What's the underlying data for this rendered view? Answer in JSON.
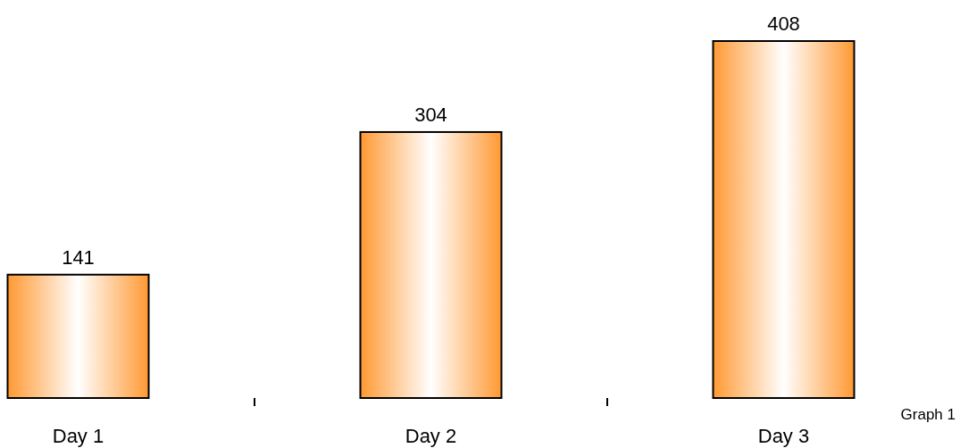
{
  "chart_data": {
    "type": "bar",
    "categories": [
      "Day 1",
      "Day 2",
      "Day 3"
    ],
    "values": [
      141,
      304,
      408
    ],
    "color": "#ff9933",
    "data_labels": true,
    "annotations": [
      "Graph 1"
    ]
  }
}
